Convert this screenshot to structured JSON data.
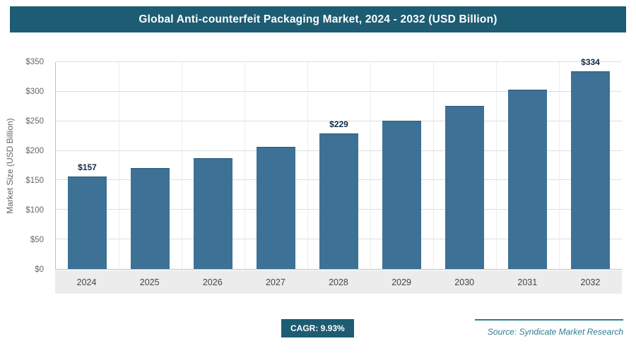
{
  "header": {
    "title": "Global Anti-counterfeit Packaging Market, 2024 - 2032 (USD Billion)"
  },
  "chart_data": {
    "type": "bar",
    "title": "Global Anti-counterfeit Packaging Market, 2024 - 2032 (USD Billion)",
    "categories": [
      "2024",
      "2025",
      "2026",
      "2027",
      "2028",
      "2029",
      "2030",
      "2031",
      "2032"
    ],
    "values": [
      157,
      171,
      188,
      207,
      229,
      251,
      276,
      303,
      334
    ],
    "annotations": [
      {
        "index": 0,
        "text": "$157"
      },
      {
        "index": 4,
        "text": "$229"
      },
      {
        "index": 8,
        "text": "$334"
      }
    ],
    "ylabel": "Market Size (USD Billion)",
    "xlabel": "",
    "ylim": [
      0,
      350
    ],
    "ytick_step": 50,
    "ytick_prefix": "$",
    "grid": true,
    "legend": false
  },
  "footer": {
    "cagr_label": "CAGR: 9.93%",
    "source": "Source: Syndicate Market Research"
  },
  "colors": {
    "header_bg": "#1d5c72",
    "bar_fill": "#3d7195",
    "bar_edge": "#2e5876",
    "badge_bg": "#1d5c72",
    "grid_line": "#dddddd",
    "axis_line": "#c0c0c0",
    "xband_bg": "#ececec",
    "value_label": "#0e2a47",
    "source_text": "#2e7d8e"
  }
}
